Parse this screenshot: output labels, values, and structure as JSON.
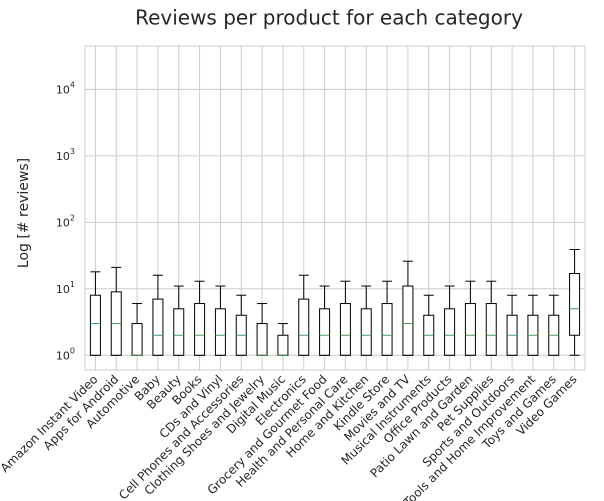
{
  "chart_data": {
    "type": "box",
    "title": "Reviews per product for each category",
    "xlabel": "",
    "ylabel": "Log [# reviews]",
    "yscale": "log",
    "ylim": [
      0.6,
      45000
    ],
    "y_ticks": [
      {
        "value": 1,
        "base": "10",
        "exp": "0"
      },
      {
        "value": 10,
        "base": "10",
        "exp": "1"
      },
      {
        "value": 100,
        "base": "10",
        "exp": "2"
      },
      {
        "value": 1000,
        "base": "10",
        "exp": "3"
      },
      {
        "value": 10000,
        "base": "10",
        "exp": "4"
      }
    ],
    "grid": true,
    "box_color": "#000000",
    "median_color": "#4a9a5a",
    "grid_color": "#cccccc",
    "categories": [
      "Amazon Instant Video",
      "Apps for Android",
      "Automotive",
      "Baby",
      "Beauty",
      "Books",
      "CDs and Vinyl",
      "Cell Phones and Accessories",
      "Clothing Shoes and Jewelry",
      "Digital Music",
      "Electronics",
      "Grocery and Gourmet Food",
      "Health and Personal Care",
      "Home and Kitchen",
      "Kindle Store",
      "Movies and TV",
      "Musical Instruments",
      "Office Products",
      "Patio Lawn and Garden",
      "Pet Supplies",
      "Sports and Outdoors",
      "Tools and Home Improvement",
      "Toys and Games",
      "Video Games"
    ],
    "boxes": [
      {
        "whislo": 1,
        "q1": 1,
        "med": 3,
        "q3": 8,
        "whishi": 18
      },
      {
        "whislo": 1,
        "q1": 1,
        "med": 3,
        "q3": 9,
        "whishi": 21
      },
      {
        "whislo": 1,
        "q1": 1,
        "med": 1,
        "q3": 3,
        "whishi": 6
      },
      {
        "whislo": 1,
        "q1": 1,
        "med": 2,
        "q3": 7,
        "whishi": 16
      },
      {
        "whislo": 1,
        "q1": 1,
        "med": 2,
        "q3": 5,
        "whishi": 11
      },
      {
        "whislo": 1,
        "q1": 1,
        "med": 2,
        "q3": 6,
        "whishi": 13
      },
      {
        "whislo": 1,
        "q1": 1,
        "med": 2,
        "q3": 5,
        "whishi": 11
      },
      {
        "whislo": 1,
        "q1": 1,
        "med": 2,
        "q3": 4,
        "whishi": 8
      },
      {
        "whislo": 1,
        "q1": 1,
        "med": 1,
        "q3": 3,
        "whishi": 6
      },
      {
        "whislo": 1,
        "q1": 1,
        "med": 1,
        "q3": 2,
        "whishi": 3
      },
      {
        "whislo": 1,
        "q1": 1,
        "med": 2,
        "q3": 7,
        "whishi": 16
      },
      {
        "whislo": 1,
        "q1": 1,
        "med": 2,
        "q3": 5,
        "whishi": 11
      },
      {
        "whislo": 1,
        "q1": 1,
        "med": 2,
        "q3": 6,
        "whishi": 13
      },
      {
        "whislo": 1,
        "q1": 1,
        "med": 2,
        "q3": 5,
        "whishi": 11
      },
      {
        "whislo": 1,
        "q1": 1,
        "med": 2,
        "q3": 6,
        "whishi": 13
      },
      {
        "whislo": 1,
        "q1": 1,
        "med": 3,
        "q3": 11,
        "whishi": 26
      },
      {
        "whislo": 1,
        "q1": 1,
        "med": 2,
        "q3": 4,
        "whishi": 8
      },
      {
        "whislo": 1,
        "q1": 1,
        "med": 2,
        "q3": 5,
        "whishi": 11
      },
      {
        "whislo": 1,
        "q1": 1,
        "med": 2,
        "q3": 6,
        "whishi": 13
      },
      {
        "whislo": 1,
        "q1": 1,
        "med": 2,
        "q3": 6,
        "whishi": 13
      },
      {
        "whislo": 1,
        "q1": 1,
        "med": 2,
        "q3": 4,
        "whishi": 8
      },
      {
        "whislo": 1,
        "q1": 1,
        "med": 2,
        "q3": 4,
        "whishi": 8
      },
      {
        "whislo": 1,
        "q1": 1,
        "med": 2,
        "q3": 4,
        "whishi": 8
      },
      {
        "whislo": 1,
        "q1": 2,
        "med": 5,
        "q3": 17,
        "whishi": 39
      }
    ]
  }
}
